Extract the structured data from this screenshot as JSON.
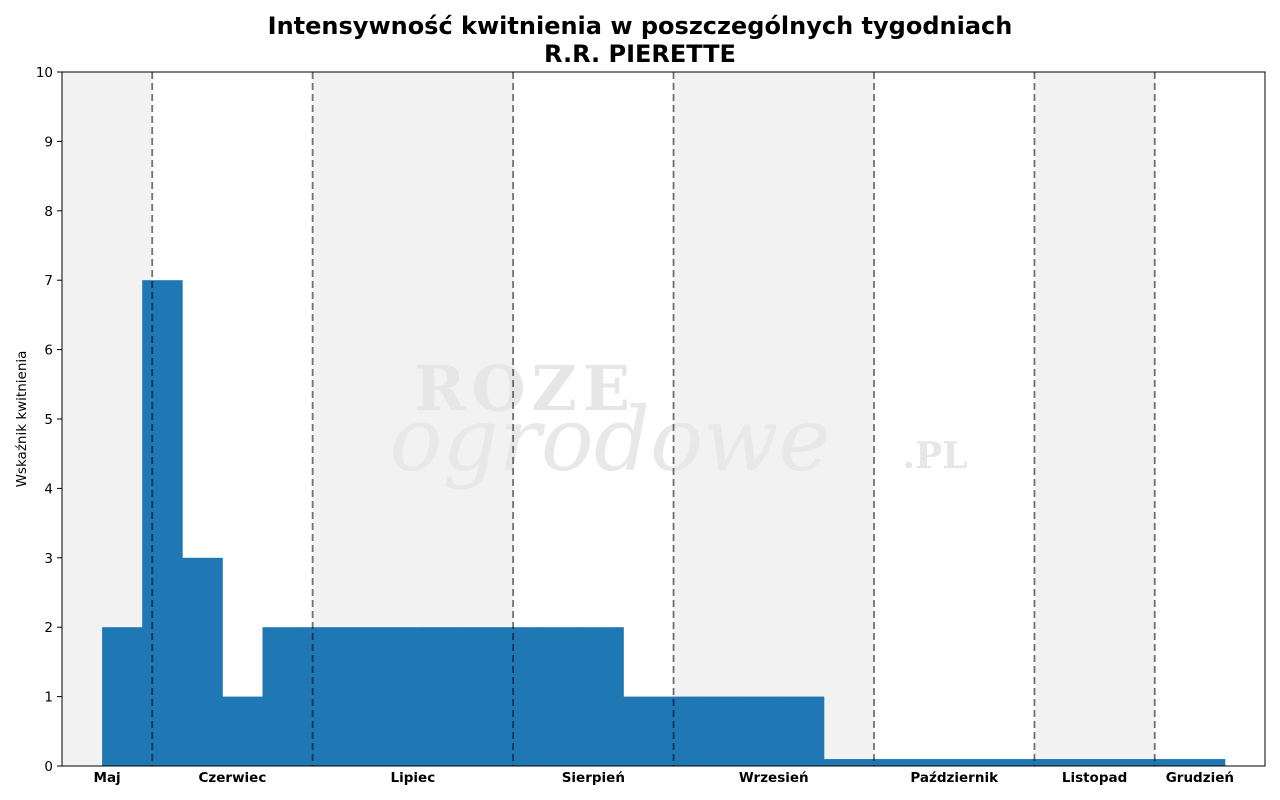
{
  "chart_data": {
    "type": "bar",
    "title": "Intensywność kwitnienia w poszczególnych tygodniach",
    "subtitle": "R.R. PIERETTE",
    "xlabel": "",
    "ylabel": "Wskaźnik kwitnienia",
    "ylim": [
      0,
      10
    ],
    "yticks": [
      0,
      1,
      2,
      3,
      4,
      5,
      6,
      7,
      8,
      9,
      10
    ],
    "weeks": 30,
    "values": [
      0,
      2,
      7,
      3,
      1,
      2,
      2,
      2,
      2,
      2,
      2,
      2,
      2,
      2,
      1,
      1,
      1,
      1,
      1,
      0.1,
      0.1,
      0.1,
      0.1,
      0.1,
      0.1,
      0.1,
      0.1,
      0.1,
      0.1,
      0
    ],
    "bar_color": "#1f77b4",
    "months": [
      {
        "label": "Maj",
        "start_week": 0,
        "weeks": 2.25
      },
      {
        "label": "Czerwiec",
        "start_week": 2.25,
        "weeks": 4
      },
      {
        "label": "Lipiec",
        "start_week": 6.25,
        "weeks": 5
      },
      {
        "label": "Sierpień",
        "start_week": 11.25,
        "weeks": 4
      },
      {
        "label": "Wrzesień",
        "start_week": 15.25,
        "weeks": 5
      },
      {
        "label": "Październik",
        "start_week": 20.25,
        "weeks": 4
      },
      {
        "label": "Listopad",
        "start_week": 24.25,
        "weeks": 3
      },
      {
        "label": "Grudzień",
        "start_week": 27.25,
        "weeks": 2.25
      }
    ],
    "watermark": "ROZE ogrodowe .PL"
  }
}
